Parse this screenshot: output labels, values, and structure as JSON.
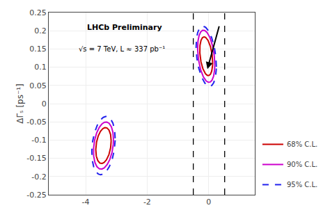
{
  "chart_data": {
    "type": "contour_ellipses",
    "ylabel": "ΔΓₛ [ps⁻¹]",
    "xlim": [
      -5.2,
      1.5
    ],
    "ylim": [
      -0.25,
      0.25
    ],
    "xticks": [
      -4,
      -2,
      0
    ],
    "yticks": [
      -0.25,
      -0.2,
      -0.15,
      -0.1,
      -0.05,
      0,
      0.05,
      0.1,
      0.15,
      0.2,
      0.25
    ],
    "grid": true,
    "legend": "lower right",
    "annotations": [
      "LHCb Preliminary",
      "√s = 7 TeV, L ≈ 337 pb⁻¹"
    ],
    "vlines": [
      -0.5,
      0.52
    ],
    "arrow": {
      "x_start": 0.35,
      "y_start": 0.215,
      "x_end": -0.04,
      "y_end": 0.095
    },
    "series": [
      {
        "name": "68% C.L.",
        "color": "#cc0000",
        "line_style": "solid",
        "ellipses": [
          {
            "cx": -0.08,
            "cy": 0.13,
            "width": 0.42,
            "height": 0.1,
            "angle": -5
          },
          {
            "cx": -3.42,
            "cy": -0.115,
            "width": 0.5,
            "height": 0.095,
            "angle": 3
          }
        ]
      },
      {
        "name": "90% C.L.",
        "color": "#cc00cc",
        "line_style": "solid",
        "ellipses": [
          {
            "cx": -0.08,
            "cy": 0.13,
            "width": 0.56,
            "height": 0.135,
            "angle": -5
          },
          {
            "cx": -3.42,
            "cy": -0.115,
            "width": 0.65,
            "height": 0.125,
            "angle": 3
          }
        ]
      },
      {
        "name": "95% C.L.",
        "color": "#2222ee",
        "line_style": "dashed",
        "ellipses": [
          {
            "cx": -0.08,
            "cy": 0.13,
            "width": 0.66,
            "height": 0.155,
            "angle": -5
          },
          {
            "cx": -3.42,
            "cy": -0.115,
            "width": 0.76,
            "height": 0.155,
            "angle": 3
          }
        ]
      }
    ]
  }
}
